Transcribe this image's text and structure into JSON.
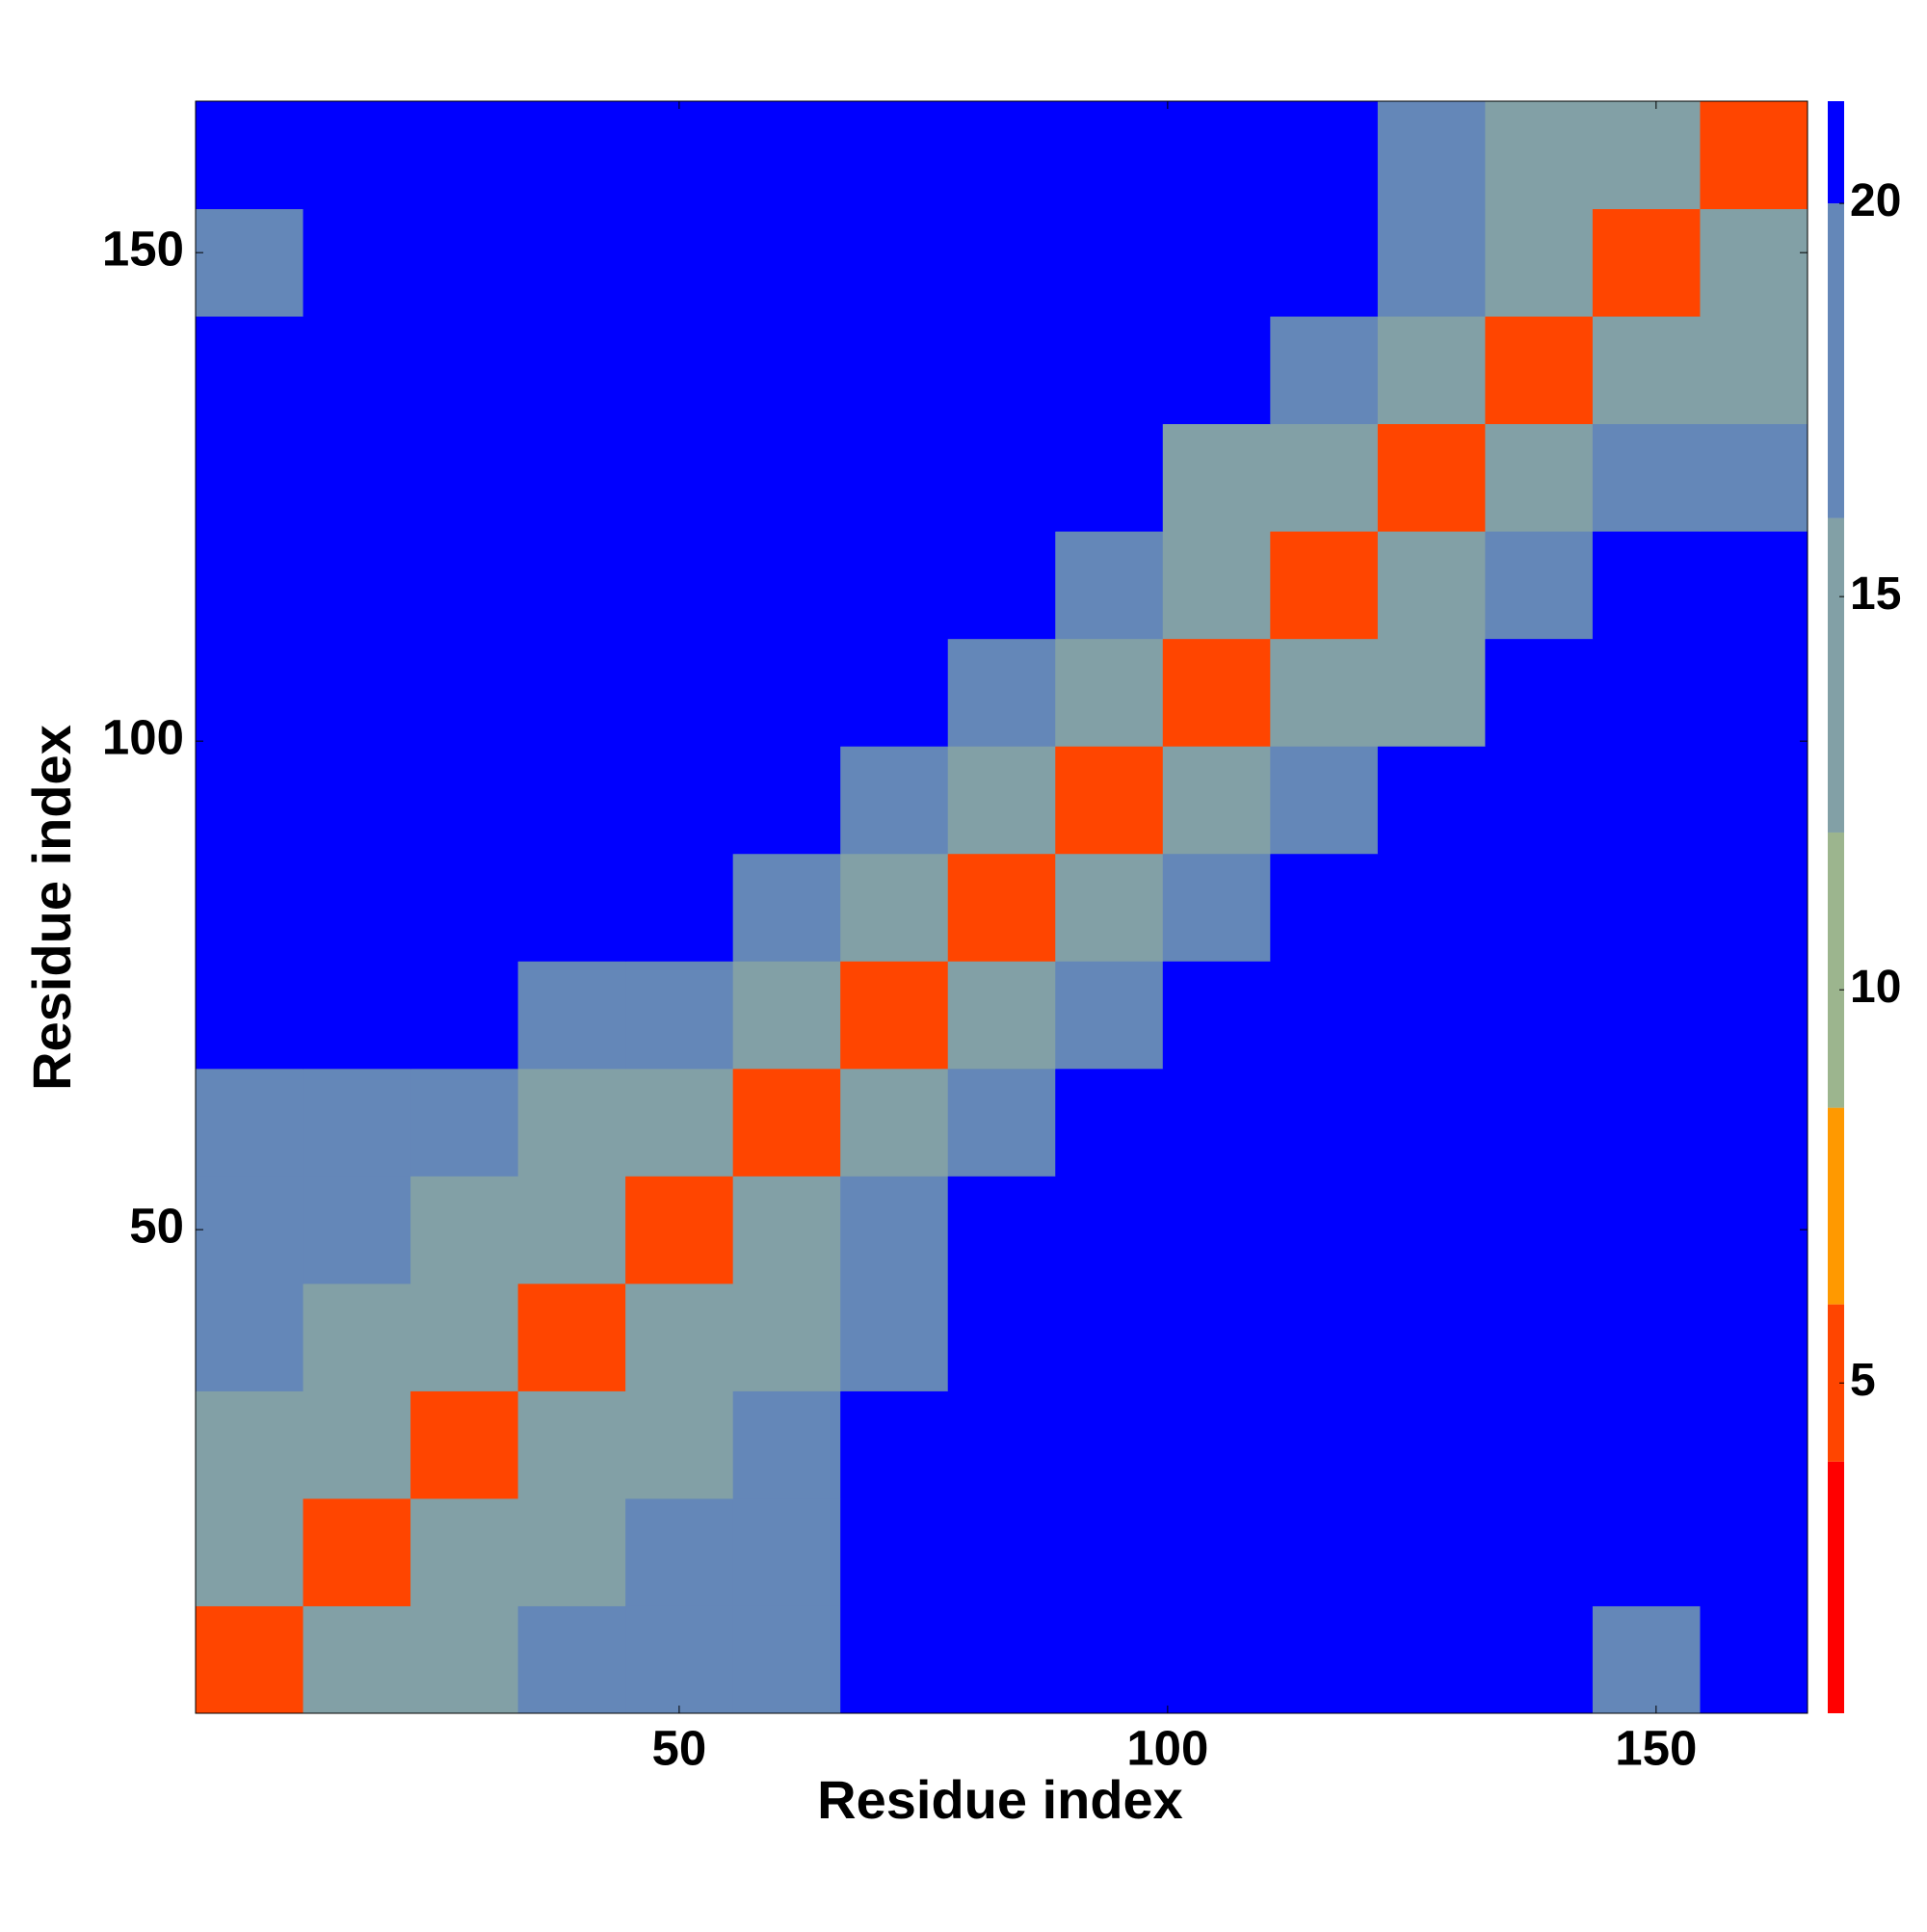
{
  "chart_data": {
    "type": "heatmap",
    "xlabel": "Residue index",
    "ylabel": "Residue index",
    "x": [
      6,
      17,
      28,
      39,
      50,
      61,
      72,
      83,
      94,
      105,
      116,
      127,
      138,
      149,
      160
    ],
    "y": [
      6,
      17,
      28,
      39,
      50,
      61,
      72,
      83,
      94,
      105,
      116,
      127,
      138,
      149,
      160
    ],
    "values": [
      [
        6,
        13,
        16,
        17,
        18,
        19,
        23,
        24,
        25,
        26,
        27,
        28,
        27,
        20,
        24
      ],
      [
        13,
        6,
        13,
        15,
        17,
        18,
        22,
        24,
        25,
        26,
        27,
        28,
        27,
        24,
        23
      ],
      [
        16,
        13,
        6,
        13,
        15,
        17,
        21,
        23,
        24,
        26,
        27,
        27,
        27,
        25,
        24
      ],
      [
        17,
        15,
        13,
        6,
        13,
        15,
        20,
        22,
        24,
        25,
        26,
        27,
        27,
        26,
        25
      ],
      [
        18,
        17,
        15,
        13,
        6,
        13,
        19,
        21,
        23,
        24,
        25,
        26,
        27,
        26,
        25
      ],
      [
        19,
        18,
        17,
        15,
        13,
        6,
        13,
        18,
        21,
        23,
        24,
        25,
        26,
        25,
        24
      ],
      [
        23,
        22,
        21,
        20,
        19,
        13,
        6,
        13,
        19,
        22,
        23,
        24,
        25,
        24,
        23
      ],
      [
        24,
        24,
        23,
        22,
        21,
        18,
        13,
        6,
        13,
        20,
        22,
        23,
        24,
        25,
        24
      ],
      [
        25,
        25,
        24,
        24,
        23,
        21,
        19,
        13,
        6,
        13,
        20,
        21,
        23,
        24,
        25
      ],
      [
        26,
        26,
        26,
        25,
        24,
        23,
        22,
        20,
        13,
        6,
        13,
        14,
        21,
        23,
        24
      ],
      [
        27,
        27,
        27,
        26,
        25,
        24,
        23,
        22,
        20,
        13,
        6,
        13,
        19,
        22,
        23
      ],
      [
        28,
        28,
        27,
        27,
        26,
        25,
        24,
        23,
        21,
        14,
        13,
        6,
        13,
        18,
        20
      ],
      [
        27,
        27,
        27,
        27,
        27,
        26,
        25,
        24,
        23,
        21,
        19,
        13,
        6,
        13,
        15
      ],
      [
        20,
        24,
        25,
        26,
        26,
        25,
        24,
        25,
        24,
        23,
        22,
        18,
        13,
        6,
        13
      ],
      [
        24,
        23,
        24,
        25,
        25,
        24,
        23,
        24,
        25,
        24,
        23,
        20,
        15,
        13,
        6
      ]
    ],
    "xlim": [
      0.5,
      165.5
    ],
    "ylim": [
      0.5,
      165.5
    ],
    "xticks": [
      50,
      100,
      150
    ],
    "yticks": [
      50,
      100,
      150
    ],
    "zlim": [
      0.8,
      21.3
    ],
    "zticks": [
      5,
      10,
      15,
      20
    ],
    "colorscale": [
      {
        "upto": 4,
        "color": "#ff0000"
      },
      {
        "upto": 6,
        "color": "#ff4500"
      },
      {
        "upto": 8.5,
        "color": "#ff9900"
      },
      {
        "upto": 12,
        "color": "#9cb58e"
      },
      {
        "upto": 16,
        "color": "#82a0a6"
      },
      {
        "upto": 20,
        "color": "#6487b8"
      },
      {
        "upto": 21.3,
        "color": "#0000ff"
      }
    ]
  }
}
